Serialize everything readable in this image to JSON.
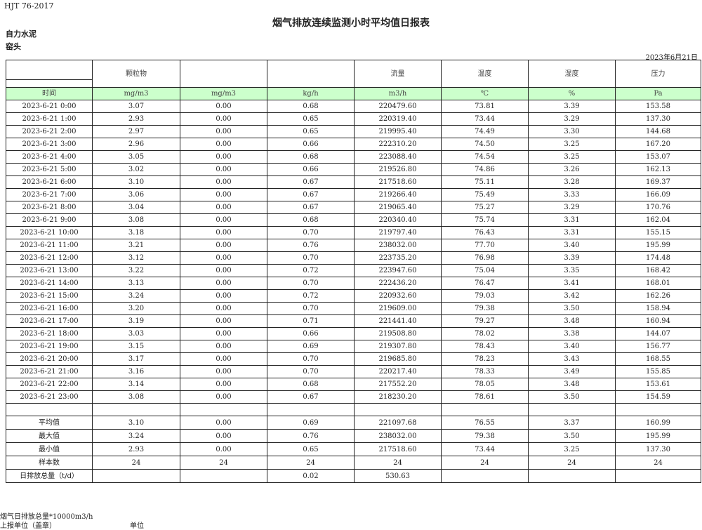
{
  "header": {
    "standard": "HJT  76-2017",
    "title": "烟气排放连续监测小时平均值日报表",
    "company": "自力水泥",
    "unit": "窑头",
    "date": "2023年6月21日"
  },
  "table": {
    "columns": [
      "",
      "颗粒物",
      "",
      "",
      "流量",
      "温度",
      "湿度",
      "压力"
    ],
    "units": [
      "时间",
      "mg/m3",
      "mg/m3",
      "kg/h",
      "m3/h",
      "℃",
      "%",
      "Pa"
    ],
    "unit_row_color": "#ccffcc",
    "rows": [
      [
        "2023-6-21 0:00",
        "3.07",
        "0.00",
        "0.68",
        "220479.60",
        "73.81",
        "3.39",
        "153.58"
      ],
      [
        "2023-6-21 1:00",
        "2.93",
        "0.00",
        "0.65",
        "220319.40",
        "73.44",
        "3.29",
        "137.30"
      ],
      [
        "2023-6-21 2:00",
        "2.97",
        "0.00",
        "0.65",
        "219995.40",
        "74.49",
        "3.30",
        "144.68"
      ],
      [
        "2023-6-21 3:00",
        "2.96",
        "0.00",
        "0.66",
        "222310.20",
        "74.50",
        "3.25",
        "167.20"
      ],
      [
        "2023-6-21 4:00",
        "3.05",
        "0.00",
        "0.68",
        "223088.40",
        "74.54",
        "3.25",
        "153.07"
      ],
      [
        "2023-6-21 5:00",
        "3.02",
        "0.00",
        "0.66",
        "219526.80",
        "74.86",
        "3.26",
        "162.13"
      ],
      [
        "2023-6-21 6:00",
        "3.10",
        "0.00",
        "0.67",
        "217518.60",
        "75.11",
        "3.28",
        "169.37"
      ],
      [
        "2023-6-21 7:00",
        "3.06",
        "0.00",
        "0.67",
        "219266.40",
        "75.49",
        "3.33",
        "166.09"
      ],
      [
        "2023-6-21 8:00",
        "3.04",
        "0.00",
        "0.67",
        "219065.40",
        "75.27",
        "3.29",
        "170.76"
      ],
      [
        "2023-6-21 9:00",
        "3.08",
        "0.00",
        "0.68",
        "220340.40",
        "75.74",
        "3.31",
        "162.04"
      ],
      [
        "2023-6-21 10:00",
        "3.18",
        "0.00",
        "0.70",
        "219797.40",
        "76.43",
        "3.31",
        "155.15"
      ],
      [
        "2023-6-21 11:00",
        "3.21",
        "0.00",
        "0.76",
        "238032.00",
        "77.70",
        "3.40",
        "195.99"
      ],
      [
        "2023-6-21 12:00",
        "3.12",
        "0.00",
        "0.70",
        "223735.20",
        "76.98",
        "3.39",
        "174.48"
      ],
      [
        "2023-6-21 13:00",
        "3.22",
        "0.00",
        "0.72",
        "223947.60",
        "75.04",
        "3.35",
        "168.42"
      ],
      [
        "2023-6-21 14:00",
        "3.13",
        "0.00",
        "0.70",
        "222436.20",
        "76.47",
        "3.41",
        "168.01"
      ],
      [
        "2023-6-21 15:00",
        "3.24",
        "0.00",
        "0.72",
        "220932.60",
        "79.03",
        "3.42",
        "162.26"
      ],
      [
        "2023-6-21 16:00",
        "3.20",
        "0.00",
        "0.70",
        "219609.00",
        "79.38",
        "3.50",
        "158.94"
      ],
      [
        "2023-6-21 17:00",
        "3.19",
        "0.00",
        "0.71",
        "221441.40",
        "79.27",
        "3.48",
        "160.94"
      ],
      [
        "2023-6-21 18:00",
        "3.03",
        "0.00",
        "0.66",
        "219508.80",
        "78.02",
        "3.38",
        "144.07"
      ],
      [
        "2023-6-21 19:00",
        "3.15",
        "0.00",
        "0.69",
        "219307.80",
        "78.43",
        "3.40",
        "156.77"
      ],
      [
        "2023-6-21 20:00",
        "3.17",
        "0.00",
        "0.70",
        "219685.80",
        "78.23",
        "3.43",
        "168.55"
      ],
      [
        "2023-6-21 21:00",
        "3.16",
        "0.00",
        "0.70",
        "220217.40",
        "78.33",
        "3.49",
        "155.85"
      ],
      [
        "2023-6-21 22:00",
        "3.14",
        "0.00",
        "0.68",
        "217552.20",
        "78.05",
        "3.48",
        "153.61"
      ],
      [
        "2023-6-21 23:00",
        "3.08",
        "0.00",
        "0.67",
        "218230.20",
        "78.61",
        "3.50",
        "154.59"
      ]
    ],
    "summary": [
      [
        "平均值",
        "3.10",
        "0.00",
        "0.69",
        "221097.68",
        "76.55",
        "3.37",
        "160.99"
      ],
      [
        "最大值",
        "3.24",
        "0.00",
        "0.76",
        "238032.00",
        "79.38",
        "3.50",
        "195.99"
      ],
      [
        "最小值",
        "2.93",
        "0.00",
        "0.65",
        "217518.60",
        "73.44",
        "3.25",
        "137.30"
      ],
      [
        "样本数",
        "24",
        "24",
        "24",
        "24",
        "24",
        "24",
        "24"
      ],
      [
        "日排放总量（t/d）",
        "",
        "",
        "0.02",
        "530.63",
        "",
        "",
        ""
      ]
    ]
  },
  "footer": {
    "note": "烟气日排放总量*10000m3/h",
    "reporter": "上报单位（盖章）",
    "unit_label": "单位"
  }
}
